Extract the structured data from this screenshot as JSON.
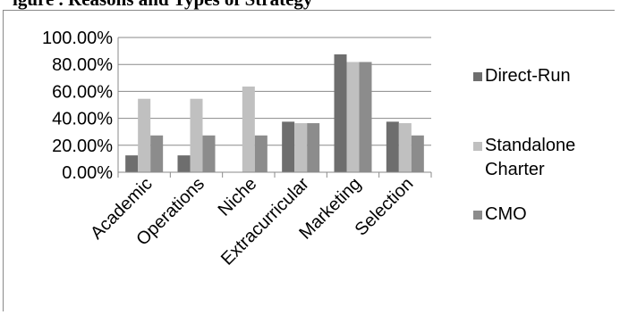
{
  "cut_off_title": "igure      .     Reasons and Types of Strategy",
  "chart_data": {
    "type": "bar",
    "title": "",
    "xlabel": "",
    "ylabel": "",
    "ylim": [
      0,
      100
    ],
    "yticks": [
      "0.00%",
      "20.00%",
      "40.00%",
      "60.00%",
      "80.00%",
      "100.00%"
    ],
    "grid": true,
    "legend_position": "right",
    "categories": [
      "Academic",
      "Operations",
      "Niche",
      "Extracurricular",
      "Marketing",
      "Selection"
    ],
    "series": [
      {
        "name": "Direct-Run",
        "color": "#6e6e6e",
        "values": [
          12.5,
          12.5,
          0,
          37.5,
          87.5,
          37.5
        ]
      },
      {
        "name": "Standalone Charter",
        "color": "#c0c0c0",
        "values": [
          54.5,
          54.5,
          63.6,
          36.4,
          81.8,
          36.4
        ]
      },
      {
        "name": "CMO",
        "color": "#8c8c8c",
        "values": [
          27.3,
          27.3,
          27.3,
          36.4,
          81.8,
          27.3
        ]
      }
    ]
  }
}
